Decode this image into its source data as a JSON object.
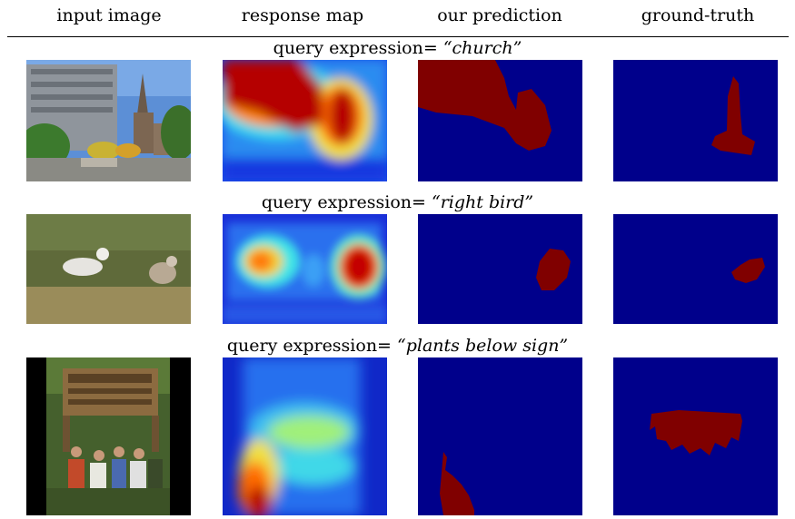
{
  "headers": [
    "input image",
    "response map",
    "our prediction",
    "ground-truth"
  ],
  "rows": [
    {
      "prefix": "query expression= ",
      "query": "“church”"
    },
    {
      "prefix": "query expression= ",
      "query": "“right bird”"
    },
    {
      "prefix": "query expression= ",
      "query": "“plants below sign”"
    }
  ],
  "colors": {
    "mask_bg": "#00008b",
    "mask_fg": "#800000"
  }
}
